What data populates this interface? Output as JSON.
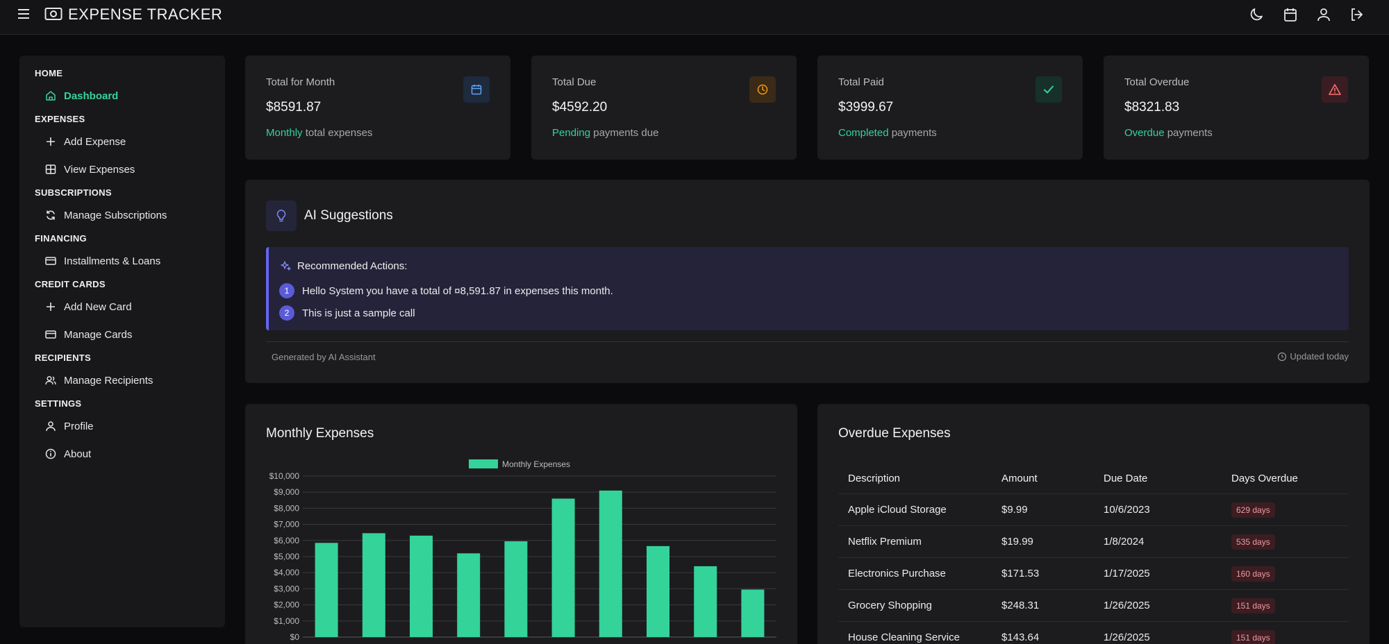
{
  "app": {
    "title": "EXPENSE TRACKER"
  },
  "topbar": {
    "icons": [
      "moon-icon",
      "calendar-icon",
      "user-icon",
      "logout-icon"
    ]
  },
  "sidebar": {
    "sections": [
      {
        "title": "HOME",
        "items": [
          {
            "label": "Dashboard",
            "icon": "home-icon",
            "active": true
          }
        ]
      },
      {
        "title": "EXPENSES",
        "items": [
          {
            "label": "Add Expense",
            "icon": "plus-icon"
          },
          {
            "label": "View Expenses",
            "icon": "table-icon"
          }
        ]
      },
      {
        "title": "SUBSCRIPTIONS",
        "items": [
          {
            "label": "Manage Subscriptions",
            "icon": "refresh-icon"
          }
        ]
      },
      {
        "title": "FINANCING",
        "items": [
          {
            "label": "Installments & Loans",
            "icon": "card-icon"
          }
        ]
      },
      {
        "title": "CREDIT CARDS",
        "items": [
          {
            "label": "Add New Card",
            "icon": "plus-icon"
          },
          {
            "label": "Manage Cards",
            "icon": "card-icon"
          }
        ]
      },
      {
        "title": "RECIPIENTS",
        "items": [
          {
            "label": "Manage Recipients",
            "icon": "users-icon"
          }
        ]
      },
      {
        "title": "SETTINGS",
        "items": [
          {
            "label": "Profile",
            "icon": "user-icon"
          },
          {
            "label": "About",
            "icon": "info-icon"
          }
        ]
      }
    ]
  },
  "stats": [
    {
      "label": "Total for Month",
      "value": "$8591.87",
      "accent": "Monthly",
      "rest": " total expenses",
      "icon": "calendar-icon",
      "color": "#60a5fa",
      "badge_bg": "#1e2a3d"
    },
    {
      "label": "Total Due",
      "value": "$4592.20",
      "accent": "Pending",
      "rest": " payments due",
      "icon": "clock-icon",
      "color": "#f59e0b",
      "badge_bg": "#3a2a17"
    },
    {
      "label": "Total Paid",
      "value": "$3999.67",
      "accent": "Completed",
      "rest": " payments",
      "icon": "check-icon",
      "color": "#34d399",
      "badge_bg": "#17302a"
    },
    {
      "label": "Total Overdue",
      "value": "$8321.83",
      "accent": "Overdue",
      "rest": " payments",
      "icon": "alert-icon",
      "color": "#f87171",
      "badge_bg": "#3a1d22"
    }
  ],
  "ai": {
    "title": "AI Suggestions",
    "recommended_title": "Recommended Actions:",
    "actions": [
      {
        "num": "1",
        "text": "Hello System you have a total of ¤8,591.87 in expenses this month."
      },
      {
        "num": "2",
        "text": "This is just a sample call"
      }
    ],
    "generated_by": "Generated by AI Assistant",
    "updated": "Updated today"
  },
  "chart_panel": {
    "title": "Monthly Expenses"
  },
  "chart_data": {
    "type": "bar",
    "legend": "Monthly Expenses",
    "legend_position": "top-center",
    "color": "#34d399",
    "values": [
      5850,
      6450,
      6300,
      5200,
      5950,
      8600,
      9100,
      5650,
      4400,
      2950
    ],
    "y_ticks": [
      "$0",
      "$1,000",
      "$2,000",
      "$3,000",
      "$4,000",
      "$5,000",
      "$6,000",
      "$7,000",
      "$8,000",
      "$9,000",
      "$10,000"
    ],
    "ylim": [
      0,
      10000
    ],
    "grid": true
  },
  "overdue": {
    "title": "Overdue Expenses",
    "headers": [
      "Description",
      "Amount",
      "Due Date",
      "Days Overdue"
    ],
    "rows": [
      {
        "desc": "Apple iCloud Storage",
        "amount": "$9.99",
        "due": "10/6/2023",
        "days": "629 days"
      },
      {
        "desc": "Netflix Premium",
        "amount": "$19.99",
        "due": "1/8/2024",
        "days": "535 days"
      },
      {
        "desc": "Electronics Purchase",
        "amount": "$171.53",
        "due": "1/17/2025",
        "days": "160 days"
      },
      {
        "desc": "Grocery Shopping",
        "amount": "$248.31",
        "due": "1/26/2025",
        "days": "151 days"
      },
      {
        "desc": "House Cleaning Service",
        "amount": "$143.64",
        "due": "1/26/2025",
        "days": "151 days"
      }
    ]
  }
}
